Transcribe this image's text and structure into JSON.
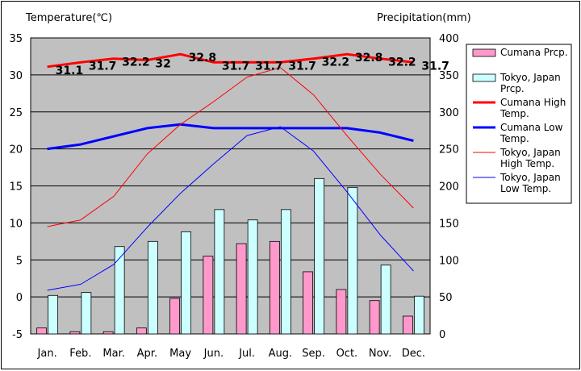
{
  "chart_data": {
    "type": "bar+line",
    "left_axis_title": "Temperature(℃)",
    "right_axis_title": "Precipitation(mm)",
    "left_ylim": [
      -5,
      35
    ],
    "left_ticks": [
      "-5",
      "0",
      "5",
      "10",
      "15",
      "20",
      "25",
      "30",
      "35"
    ],
    "right_ylim": [
      0,
      400
    ],
    "right_ticks": [
      "0",
      "50",
      "100",
      "150",
      "200",
      "250",
      "300",
      "350",
      "400"
    ],
    "categories": [
      "Jan.",
      "Feb.",
      "Mar.",
      "Apr.",
      "May",
      "Jun.",
      "Jul.",
      "Aug.",
      "Sep.",
      "Oct.",
      "Nov.",
      "Dec."
    ],
    "bar_series": [
      {
        "name": "Cumana Prcp.",
        "color": "#ff99cc",
        "axis": "right",
        "values": [
          8,
          3,
          3,
          8,
          48,
          105,
          122,
          125,
          84,
          60,
          45,
          24
        ]
      },
      {
        "name": "Tokyo, Japan Prcp.",
        "color": "#ccffff",
        "axis": "right",
        "values": [
          52,
          56,
          118,
          125,
          138,
          168,
          154,
          168,
          210,
          198,
          93,
          51
        ]
      }
    ],
    "line_series": [
      {
        "name": "Cumana High Temp.",
        "color": "#ff0000",
        "width": 3,
        "axis": "left",
        "values": [
          31.1,
          31.7,
          32.2,
          32,
          32.8,
          31.7,
          31.7,
          31.7,
          32.2,
          32.8,
          32.2,
          31.7
        ]
      },
      {
        "name": "Cumana Low Temp.",
        "color": "#0000ff",
        "width": 3,
        "axis": "left",
        "values": [
          20,
          20.6,
          21.7,
          22.8,
          23.3,
          22.8,
          22.8,
          22.8,
          22.8,
          22.8,
          22.2,
          21.1
        ]
      },
      {
        "name": "Tokyo, Japan High Temp.",
        "color": "#ff0000",
        "width": 1,
        "axis": "left",
        "values": [
          9.5,
          10.4,
          13.6,
          19.3,
          23.3,
          26.4,
          29.7,
          31.0,
          27.3,
          21.8,
          16.6,
          12.0
        ]
      },
      {
        "name": "Tokyo, Japan Low Temp.",
        "color": "#0000ff",
        "width": 1,
        "axis": "left",
        "values": [
          0.9,
          1.7,
          4.4,
          9.4,
          14.0,
          18.0,
          21.8,
          23.0,
          19.7,
          14.2,
          8.4,
          3.5
        ]
      }
    ],
    "data_labels": [
      "31.1",
      "31.7",
      "32.2",
      "32",
      "32.8",
      "31.7",
      "31.7",
      "31.7",
      "32.2",
      "32.8",
      "32.2",
      "31.7"
    ],
    "legend": [
      {
        "text": "Cumana Prcp.",
        "kind": "box",
        "color": "#ff99cc"
      },
      {
        "text": "Tokyo, Japan Prcp.",
        "kind": "box",
        "color": "#ccffff"
      },
      {
        "text": "Cumana High Temp.",
        "kind": "line",
        "color": "#ff0000",
        "width": 3
      },
      {
        "text": "Cumana Low Temp.",
        "kind": "line",
        "color": "#0000ff",
        "width": 3
      },
      {
        "text": "Tokyo, Japan High Temp.",
        "kind": "line",
        "color": "#ff0000",
        "width": 1
      },
      {
        "text": "Tokyo, Japan Low Temp.",
        "kind": "line",
        "color": "#0000ff",
        "width": 1
      }
    ],
    "legend_position": "right",
    "plot_background": "#c0c0c0",
    "grid": "horizontal"
  }
}
